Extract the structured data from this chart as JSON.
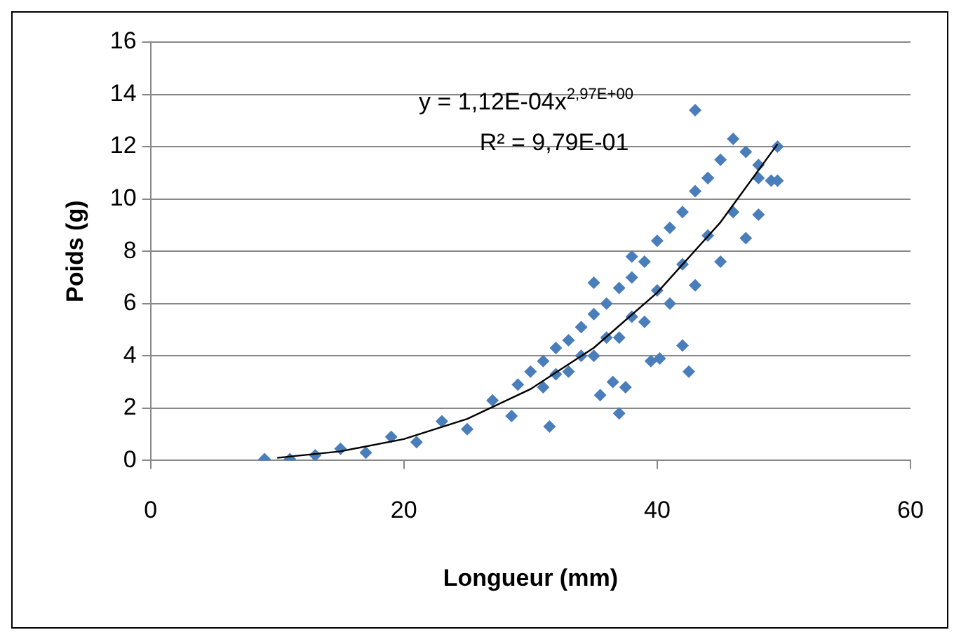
{
  "chart_data": {
    "type": "scatter",
    "xlabel": "Longueur (mm)",
    "ylabel": "Poids (g)",
    "xlim": [
      0,
      60
    ],
    "xticks": [
      0,
      20,
      40,
      60
    ],
    "ylim": [
      0,
      16
    ],
    "yticks": [
      0,
      2,
      4,
      6,
      8,
      10,
      12,
      14,
      16
    ],
    "grid": "y",
    "legend": false,
    "marker": "diamond",
    "annotations": [
      "y = 1,12E-04x$^{2,97E+00}$",
      "R² = 9,79E-01"
    ],
    "series": [
      {
        "type": "scatter",
        "color": "#4a7ebb",
        "x": [
          9,
          11,
          13,
          15,
          17,
          19,
          21,
          23,
          25,
          27,
          28.5,
          29,
          30,
          31,
          31,
          32,
          32,
          33,
          33,
          34,
          34,
          35,
          35,
          36,
          36,
          37,
          37,
          38,
          38,
          39,
          39,
          40,
          40,
          41,
          41,
          42,
          42,
          43,
          43,
          44,
          44,
          45,
          45,
          46,
          46,
          47,
          47,
          48,
          48,
          48,
          49,
          31.5,
          35.5,
          36.5,
          37,
          37.5,
          39.5,
          40.2,
          42,
          42.5,
          43,
          49.5,
          49.5,
          35,
          38,
          44
        ],
        "values": [
          0.05,
          0.05,
          0.2,
          0.45,
          0.3,
          0.9,
          0.7,
          1.5,
          1.2,
          2.3,
          1.7,
          2.9,
          3.4,
          3.8,
          2.8,
          4.3,
          3.3,
          4.6,
          3.4,
          5.1,
          4.0,
          5.6,
          4.0,
          6.0,
          4.7,
          6.6,
          4.7,
          7.0,
          5.5,
          7.6,
          5.3,
          8.4,
          6.5,
          8.9,
          6.0,
          9.5,
          7.5,
          10.3,
          6.7,
          10.8,
          8.6,
          11.5,
          7.6,
          12.3,
          9.5,
          11.8,
          8.5,
          11.3,
          9.4,
          10.8,
          10.7,
          1.3,
          2.5,
          3.0,
          1.8,
          2.8,
          3.8,
          3.9,
          4.4,
          3.4,
          13.4,
          12,
          10.7,
          6.8,
          7.8,
          10.8
        ]
      },
      {
        "type": "line",
        "color": "#000000",
        "marker": "none",
        "x": [
          10,
          15,
          20,
          25,
          30,
          35,
          40,
          45,
          49.5
        ],
        "values": [
          0.1,
          0.35,
          0.82,
          1.59,
          2.73,
          4.31,
          6.42,
          9.11,
          12.1
        ]
      }
    ]
  }
}
